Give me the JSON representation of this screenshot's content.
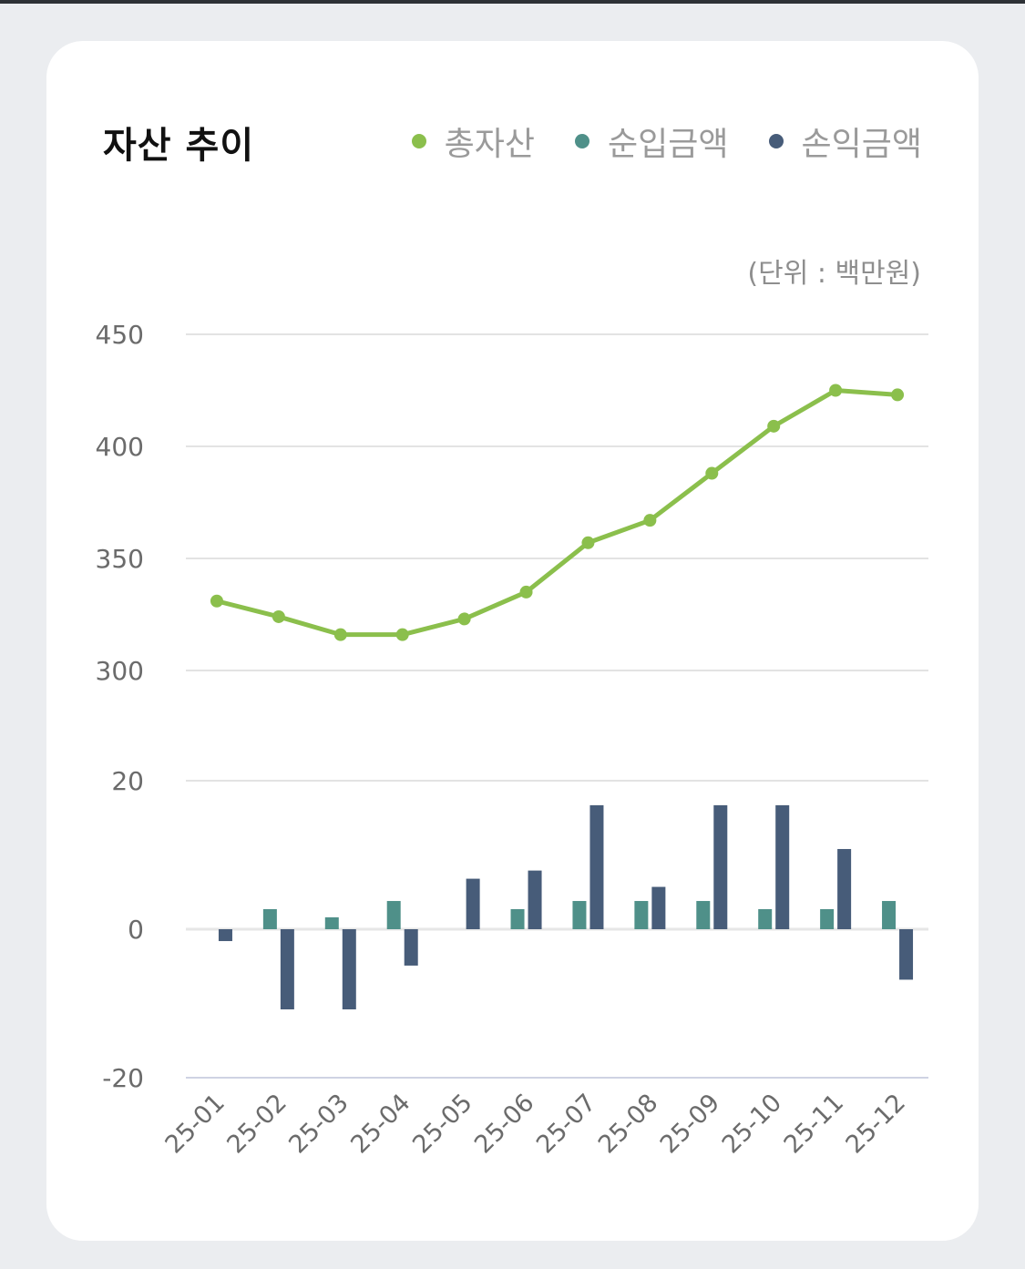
{
  "card": {
    "title": "자산 추이",
    "unit": "(단위 : 백만원)",
    "legend": [
      {
        "label": "총자산",
        "color": "#8bbf4c"
      },
      {
        "label": "순입금액",
        "color": "#4f9089"
      },
      {
        "label": "손익금액",
        "color": "#475c79"
      }
    ]
  },
  "chart_data": [
    {
      "type": "line",
      "title": "자산 추이",
      "series": [
        {
          "name": "총자산",
          "color": "#8bbf4c",
          "values": [
            331,
            324,
            316,
            316,
            323,
            335,
            357,
            367,
            388,
            409,
            425,
            423
          ]
        }
      ],
      "categories": [
        "25-01",
        "25-02",
        "25-03",
        "25-04",
        "25-05",
        "25-06",
        "25-07",
        "25-08",
        "25-09",
        "25-10",
        "25-11",
        "25-12"
      ],
      "ylim": [
        300,
        450
      ],
      "yticks": [
        "450",
        "400",
        "350",
        "300"
      ],
      "grid": true,
      "ylabel": "(단위 : 백만원)"
    },
    {
      "type": "bar",
      "series": [
        {
          "name": "순입금액",
          "color": "#4f9089",
          "values": [
            0,
            2.7,
            1.6,
            3.8,
            0,
            2.7,
            3.8,
            3.8,
            3.8,
            2.7,
            2.7,
            3.8
          ]
        },
        {
          "name": "손익금액",
          "color": "#475c79",
          "values": [
            -1.6,
            -10.8,
            -10.8,
            -4.9,
            6.8,
            7.9,
            16.7,
            5.7,
            16.7,
            16.7,
            10.8,
            -6.8
          ]
        }
      ],
      "categories": [
        "25-01",
        "25-02",
        "25-03",
        "25-04",
        "25-05",
        "25-06",
        "25-07",
        "25-08",
        "25-09",
        "25-10",
        "25-11",
        "25-12"
      ],
      "ylim": [
        -20,
        20
      ],
      "yticks": [
        "20",
        "0",
        "-20"
      ],
      "grid": true
    }
  ]
}
